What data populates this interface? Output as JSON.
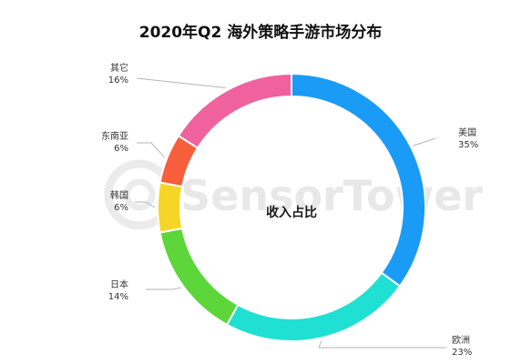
{
  "chart_data": {
    "type": "pie",
    "title": "2020年Q2 海外策略手游市场分布",
    "center_label": "收入占比",
    "unit": "%",
    "slices": [
      {
        "label": "美国",
        "value": 35,
        "display": "35%",
        "color": "#1A9BF5"
      },
      {
        "label": "欧洲",
        "value": 23,
        "display": "23%",
        "color": "#1FE0D3"
      },
      {
        "label": "日本",
        "value": 14,
        "display": "14%",
        "color": "#5CD63A"
      },
      {
        "label": "韩国",
        "value": 6,
        "display": "6%",
        "color": "#F5D627"
      },
      {
        "label": "东南亚",
        "value": 6,
        "display": "6%",
        "color": "#F65E3C"
      },
      {
        "label": "其它",
        "value": 16,
        "display": "16%",
        "color": "#F0629E"
      }
    ]
  },
  "watermark": {
    "text": "SensorTower",
    "icon": "sensortower-logo-icon"
  }
}
